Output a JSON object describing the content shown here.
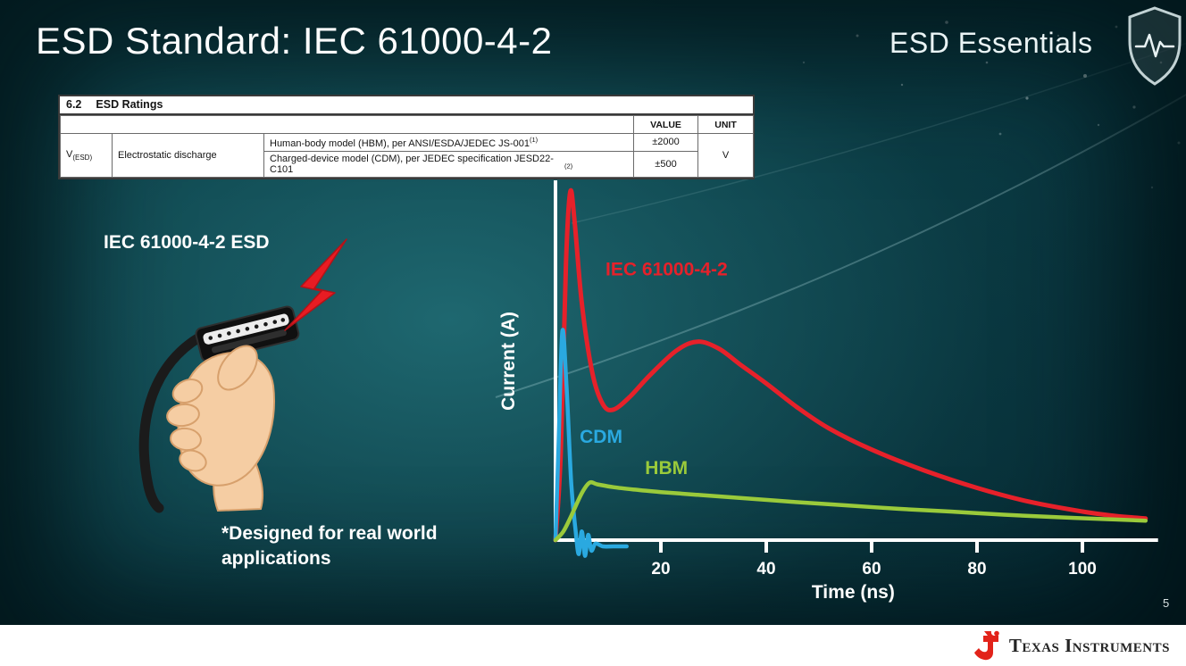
{
  "slide": {
    "title": "ESD Standard: IEC 61000-4-2",
    "series_brand": "ESD Essentials",
    "page_number": "5",
    "footer_brand": "Texas Instruments"
  },
  "ratings_table": {
    "section_number": "6.2",
    "section_title": "ESD Ratings",
    "headers": {
      "value": "VALUE",
      "unit": "UNIT"
    },
    "param_symbol": "V",
    "param_symbol_sub": "(ESD)",
    "param_name": "Electrostatic discharge",
    "rows": [
      {
        "description": "Human-body model (HBM), per ANSI/ESDA/JEDEC JS-001",
        "footnote": "(1)",
        "value": "±2000"
      },
      {
        "description": "Charged-device model (CDM), per JEDEC specification JESD22-C101",
        "footnote": "(2)",
        "value": "±500"
      }
    ],
    "unit": "V"
  },
  "illustration": {
    "caption": "IEC 61000-4-2 ESD",
    "note_line1": "*Designed for real world",
    "note_line2": "applications"
  },
  "chart_data": {
    "type": "line",
    "title": "",
    "xlabel": "Time (ns)",
    "ylabel": "Current (A)",
    "xlim": [
      0,
      113
    ],
    "ylim": [
      -8,
      102
    ],
    "xticks": [
      20,
      40,
      60,
      80,
      100
    ],
    "grid": false,
    "legend": "inline-labels",
    "axis_color": "#ffffff",
    "series": [
      {
        "name": "IEC 61000-4-2",
        "color": "#e6212a",
        "width": 5,
        "label_at": [
          9.5,
          76
        ],
        "points": [
          [
            0,
            0
          ],
          [
            1,
            25
          ],
          [
            2,
            80
          ],
          [
            2.8,
            100
          ],
          [
            3.6,
            92
          ],
          [
            5,
            68
          ],
          [
            7,
            48
          ],
          [
            9,
            39
          ],
          [
            11,
            37.5
          ],
          [
            14,
            41
          ],
          [
            18,
            47.5
          ],
          [
            23,
            54.5
          ],
          [
            27,
            57
          ],
          [
            31,
            55
          ],
          [
            35,
            50.5
          ],
          [
            40,
            45
          ],
          [
            46,
            38
          ],
          [
            52,
            32
          ],
          [
            60,
            26
          ],
          [
            70,
            20
          ],
          [
            80,
            15
          ],
          [
            90,
            11
          ],
          [
            100,
            8.2
          ],
          [
            106,
            7
          ],
          [
            112,
            6.2
          ]
        ]
      },
      {
        "name": "CDM",
        "color": "#2aa9e0",
        "width": 4.5,
        "label_at": [
          4.6,
          28
        ],
        "points": [
          [
            0,
            0
          ],
          [
            0.6,
            28
          ],
          [
            1.3,
            60
          ],
          [
            2.1,
            44
          ],
          [
            3,
            16
          ],
          [
            3.8,
            3
          ],
          [
            4.4,
            -4
          ],
          [
            5,
            2.5
          ],
          [
            5.6,
            -4.5
          ],
          [
            6.2,
            1.5
          ],
          [
            6.8,
            -3
          ],
          [
            7.6,
            -1
          ],
          [
            9,
            -1.8
          ],
          [
            11,
            -1.8
          ],
          [
            13.5,
            -1.8
          ]
        ]
      },
      {
        "name": "HBM",
        "color": "#9aca3b",
        "width": 4.5,
        "label_at": [
          17,
          19
        ],
        "points": [
          [
            0,
            0
          ],
          [
            1.5,
            2.5
          ],
          [
            3,
            7
          ],
          [
            5,
            13.5
          ],
          [
            6.5,
            16.5
          ],
          [
            8,
            16
          ],
          [
            11,
            15.2
          ],
          [
            15,
            14.5
          ],
          [
            20,
            13.8
          ],
          [
            27,
            13
          ],
          [
            35,
            12.1
          ],
          [
            45,
            11
          ],
          [
            55,
            10
          ],
          [
            65,
            9
          ],
          [
            75,
            8.2
          ],
          [
            85,
            7.3
          ],
          [
            95,
            6.6
          ],
          [
            105,
            6
          ],
          [
            112,
            5.6
          ]
        ]
      }
    ]
  }
}
